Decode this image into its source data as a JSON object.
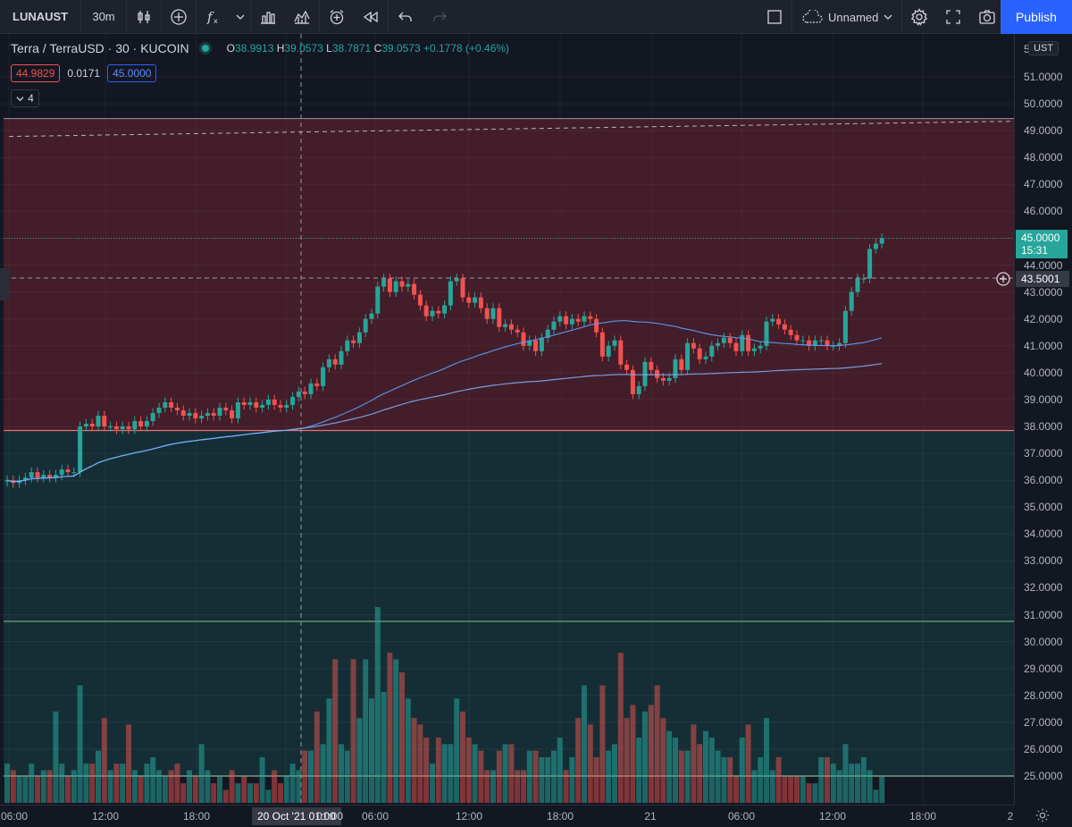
{
  "toolbar": {
    "symbol": "LUNAUST",
    "interval": "30m",
    "layout_name": "Unnamed",
    "publish": "Publish"
  },
  "legend": {
    "title": "Terra / TerraUSD · 30 · KUCOIN",
    "o_label": "O",
    "o": "38.9913",
    "h_label": "H",
    "h": "39.0573",
    "l_label": "L",
    "l": "38.7871",
    "c_label": "C",
    "c": "39.0573",
    "change": "+0.1778 (+0.46%)"
  },
  "indicators": {
    "value_red": "44.9829",
    "value_mid": "0.0171",
    "value_blue": "45.0000",
    "collapsed_count": "4"
  },
  "price_axis": {
    "currency": "UST",
    "top_partial": "5",
    "ticks": [
      "51.0000",
      "50.0000",
      "49.0000",
      "48.0000",
      "47.0000",
      "46.0000",
      "44.0000",
      "43.0000",
      "42.0000",
      "41.0000",
      "40.0000",
      "39.0000",
      "38.0000",
      "37.0000",
      "36.0000",
      "35.0000",
      "34.0000",
      "33.0000",
      "32.0000",
      "31.0000",
      "30.0000",
      "29.0000",
      "28.0000",
      "27.0000",
      "26.0000",
      "25.0000"
    ],
    "current_price": "45.0000",
    "countdown": "15:31",
    "crosshair_price": "43.5001"
  },
  "time_axis": {
    "labels": [
      "06:00",
      "12:00",
      "18:00",
      "06:00",
      "12:00",
      "18:00",
      "21",
      "06:00",
      "12:00",
      "18:00",
      "2"
    ],
    "crosshair_time": "20 Oct '21 01:00",
    "hidden_label": "01:00"
  },
  "colors": {
    "background": "#131722",
    "up": "#26a69a",
    "down": "#ef5350",
    "ma": "#5b9cf6",
    "accent": "#2962ff"
  },
  "chart_data": {
    "type": "candlestick",
    "exchange": "KUCOIN",
    "interval_minutes": 30,
    "ylim": [
      24.6,
      51.8
    ],
    "zones": [
      {
        "from": 37.85,
        "to": 49.45,
        "color": "red"
      },
      {
        "from": 25.0,
        "to": 37.85,
        "color": "green"
      }
    ],
    "dashed_level": 49.35,
    "current_level": 45.0,
    "close": [
      36.0,
      35.9,
      36.0,
      36.1,
      36.3,
      36.1,
      36.2,
      36.1,
      36.2,
      36.4,
      36.3,
      36.3,
      38.0,
      38.1,
      38.0,
      38.4,
      38.0,
      38.0,
      37.9,
      38.0,
      37.9,
      38.2,
      38.0,
      38.2,
      38.5,
      38.7,
      38.9,
      38.7,
      38.6,
      38.4,
      38.5,
      38.3,
      38.4,
      38.5,
      38.4,
      38.7,
      38.6,
      38.3,
      38.9,
      38.8,
      38.9,
      38.7,
      38.8,
      39.0,
      38.8,
      38.7,
      38.8,
      39.1,
      39.3,
      39.2,
      39.6,
      39.5,
      40.2,
      40.5,
      40.3,
      40.8,
      41.2,
      41.1,
      41.5,
      42.0,
      42.2,
      43.2,
      43.5,
      43.0,
      43.4,
      43.2,
      43.3,
      42.9,
      42.5,
      42.1,
      42.3,
      42.2,
      42.5,
      43.4,
      43.5,
      42.8,
      42.6,
      42.8,
      42.4,
      42.0,
      42.4,
      41.7,
      41.8,
      41.6,
      41.5,
      41.0,
      41.2,
      40.8,
      41.3,
      41.6,
      41.9,
      42.1,
      41.8,
      42.0,
      41.9,
      42.1,
      42.0,
      41.5,
      40.6,
      41.0,
      41.2,
      40.3,
      40.1,
      39.2,
      39.5,
      40.4,
      40.1,
      39.8,
      39.7,
      39.8,
      40.5,
      40.1,
      41.1,
      40.9,
      40.5,
      40.6,
      41.0,
      41.1,
      41.3,
      41.1,
      40.8,
      41.4,
      40.8,
      40.9,
      41.0,
      41.9,
      42.0,
      41.8,
      41.6,
      41.4,
      41.2,
      41.2,
      41.0,
      41.2,
      41.2,
      41.0,
      41.0,
      41.1,
      42.3,
      43.0,
      43.5,
      43.5,
      44.6,
      44.8,
      45.0
    ],
    "volume": [
      6,
      5,
      4,
      4,
      6,
      4,
      5,
      5,
      14,
      6,
      4,
      5,
      18,
      6,
      6,
      8,
      13,
      5,
      6,
      6,
      12,
      5,
      4,
      6,
      7,
      5,
      4,
      5,
      6,
      3,
      5,
      4,
      9,
      5,
      3,
      4,
      2,
      5,
      3,
      4,
      3,
      3,
      7,
      2,
      5,
      3,
      4,
      6,
      5,
      8,
      8,
      14,
      9,
      16,
      22,
      9,
      8,
      22,
      13,
      22,
      16,
      30,
      17,
      23,
      22,
      20,
      16,
      13,
      12,
      10,
      6,
      10,
      9,
      9,
      16,
      14,
      10,
      9,
      8,
      5,
      5,
      8,
      9,
      9,
      5,
      5,
      8,
      8,
      7,
      7,
      8,
      10,
      5,
      7,
      13,
      18,
      12,
      7,
      18,
      8,
      9,
      23,
      13,
      15,
      10,
      14,
      15,
      18,
      13,
      11,
      10,
      8,
      8,
      12,
      9,
      11,
      10,
      8,
      7,
      7,
      4,
      10,
      12,
      5,
      7,
      13,
      5,
      7,
      4,
      4,
      4,
      4,
      3,
      3,
      7,
      7,
      6,
      5,
      9,
      6,
      6,
      7,
      5,
      2,
      4
    ]
  }
}
